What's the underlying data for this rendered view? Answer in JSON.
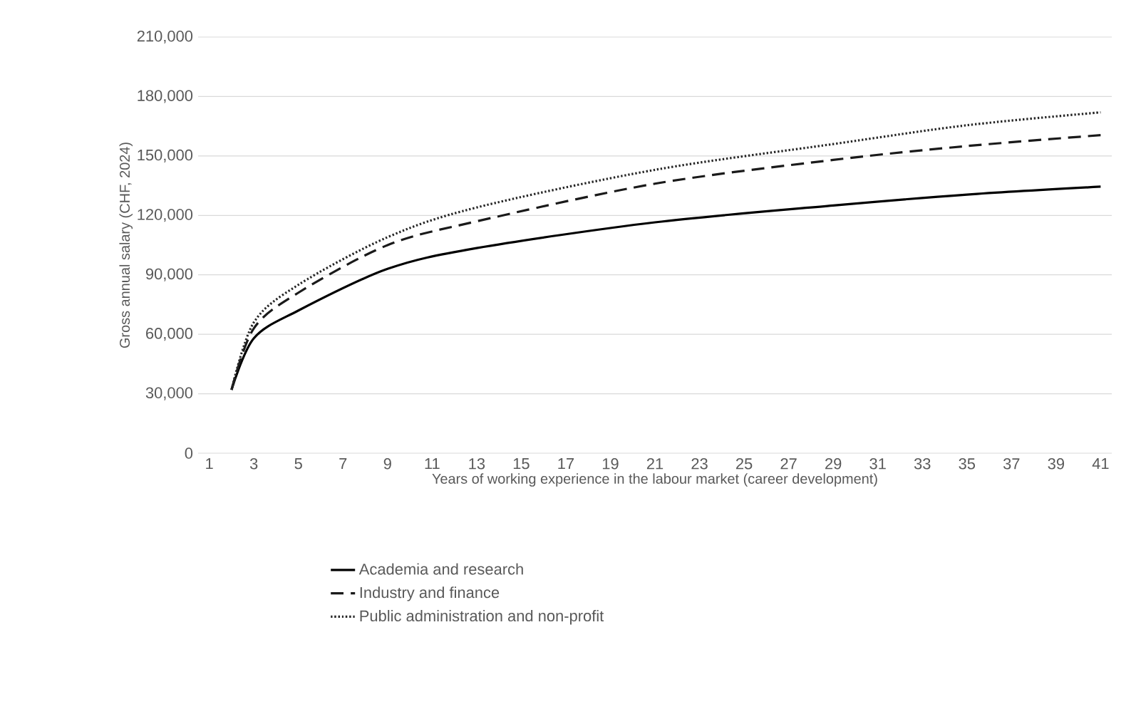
{
  "chart_data": {
    "type": "line",
    "xlabel": "Years of working experience in the labour market (career development)",
    "ylabel": "Gross annual salary (CHF, 2024)",
    "xlim": [
      0.5,
      41.5
    ],
    "xticks": [
      1,
      3,
      5,
      7,
      9,
      11,
      13,
      15,
      17,
      19,
      21,
      23,
      25,
      27,
      29,
      31,
      33,
      35,
      37,
      39,
      41
    ],
    "ylim": [
      0,
      210000
    ],
    "yticks": [
      {
        "value": 0,
        "label": "0"
      },
      {
        "value": 30000,
        "label": "30,000"
      },
      {
        "value": 60000,
        "label": "60,000"
      },
      {
        "value": 90000,
        "label": "90,000"
      },
      {
        "value": 120000,
        "label": "120,000"
      },
      {
        "value": 150000,
        "label": "150,000"
      },
      {
        "value": 180000,
        "label": "180,000"
      },
      {
        "value": 210000,
        "label": "210,000"
      }
    ],
    "grid": "y",
    "legend": "bottom",
    "marker": "none",
    "x": [
      2,
      3,
      5,
      9,
      13,
      21,
      29,
      35,
      41
    ],
    "series": [
      {
        "name": "Academia and research",
        "color": "#000000",
        "line_style": "solid",
        "values": [
          32000,
          58000,
          72000,
          93000,
          103500,
          116500,
          125000,
          130500,
          134500
        ]
      },
      {
        "name": "Industry and finance",
        "color": "#1a1a1a",
        "line_style": "dashed",
        "values": [
          32000,
          63000,
          81000,
          105000,
          117000,
          136000,
          148000,
          155000,
          160500
        ]
      },
      {
        "name": "Public administration and non-profit",
        "color": "#262626",
        "line_style": "dotted",
        "values": [
          32000,
          66000,
          85000,
          109000,
          124000,
          143000,
          156000,
          165500,
          172000
        ]
      }
    ]
  }
}
